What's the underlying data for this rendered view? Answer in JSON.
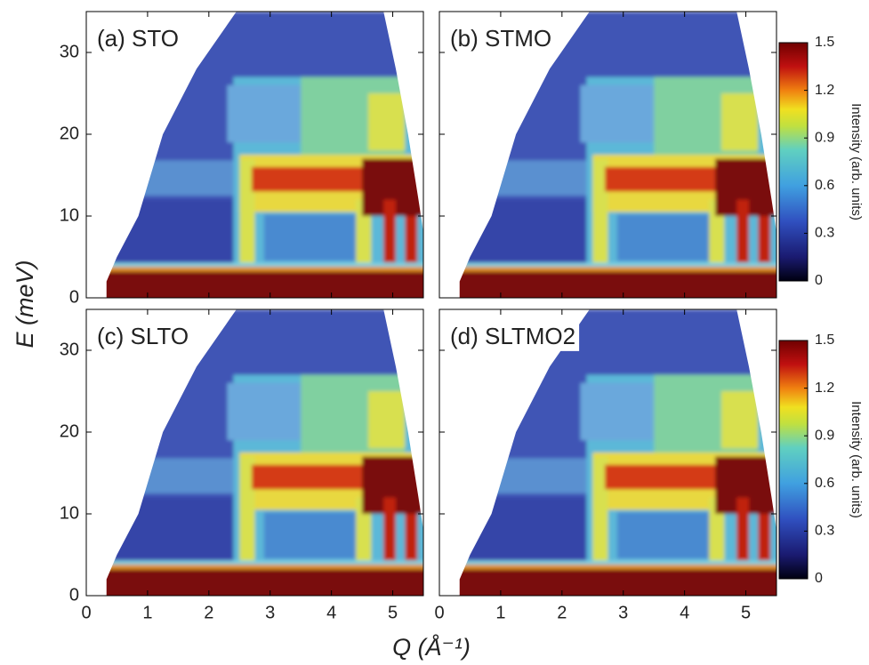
{
  "figure": {
    "xlabel": "Q (Å⁻¹)",
    "ylabel": "E (meV)"
  },
  "chart_data": [
    {
      "type": "heatmap",
      "panel_label": "(a) STO",
      "xlim": [
        0,
        5.5
      ],
      "ylim": [
        0,
        35
      ],
      "xticks": [
        0,
        1,
        2,
        3,
        4,
        5
      ],
      "yticks": [
        0,
        10,
        20,
        30
      ],
      "show_xtick_labels": false,
      "show_ytick_labels": true
    },
    {
      "type": "heatmap",
      "panel_label": "(b) STMO",
      "xlim": [
        0,
        5.5
      ],
      "ylim": [
        0,
        35
      ],
      "xticks": [
        0,
        1,
        2,
        3,
        4,
        5
      ],
      "yticks": [
        0,
        10,
        20,
        30
      ],
      "show_xtick_labels": false,
      "show_ytick_labels": false,
      "colorbar": {
        "label": "Intensity (arb. units)",
        "lim": [
          0,
          1.5
        ],
        "ticks": [
          0,
          0.3,
          0.6,
          0.9,
          1.2,
          1.5
        ]
      }
    },
    {
      "type": "heatmap",
      "panel_label": "(c) SLTO",
      "xlim": [
        0,
        5.5
      ],
      "ylim": [
        0,
        35
      ],
      "xticks": [
        0,
        1,
        2,
        3,
        4,
        5
      ],
      "yticks": [
        0,
        10,
        20,
        30
      ],
      "show_xtick_labels": true,
      "show_ytick_labels": true
    },
    {
      "type": "heatmap",
      "panel_label": "(d) SLTMO2",
      "xlim": [
        0,
        5.5
      ],
      "ylim": [
        0,
        35
      ],
      "xticks": [
        0,
        1,
        2,
        3,
        4,
        5
      ],
      "yticks": [
        0,
        10,
        20,
        30
      ],
      "show_xtick_labels": true,
      "show_ytick_labels": false,
      "colorbar": {
        "label": "Intensity (arb. units)",
        "lim": [
          0,
          1.5
        ],
        "ticks": [
          0,
          0.3,
          0.6,
          0.9,
          1.2,
          1.5
        ]
      }
    }
  ]
}
